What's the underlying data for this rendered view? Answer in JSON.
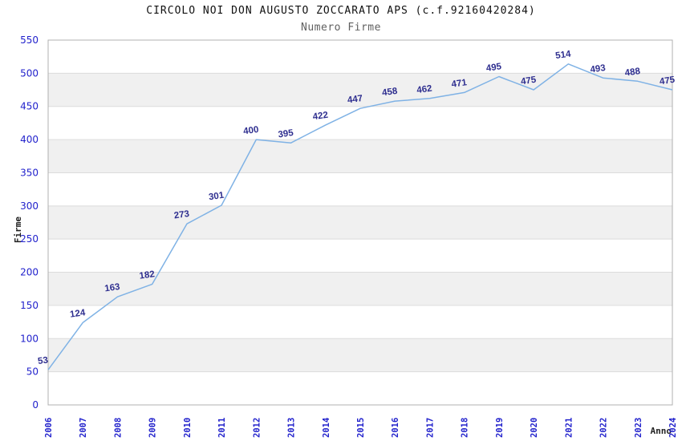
{
  "chart_data": {
    "type": "line",
    "title": "CIRCOLO NOI DON AUGUSTO ZOCCARATO APS (c.f.92160420284)",
    "subtitle": "Numero Firme",
    "xlabel": "Anno",
    "ylabel": "Firme",
    "categories": [
      "2006",
      "2007",
      "2008",
      "2009",
      "2010",
      "2011",
      "2012",
      "2013",
      "2014",
      "2015",
      "2016",
      "2017",
      "2018",
      "2019",
      "2020",
      "2021",
      "2022",
      "2023",
      "2024"
    ],
    "values": [
      53,
      124,
      163,
      182,
      273,
      301,
      400,
      395,
      422,
      447,
      458,
      462,
      471,
      495,
      475,
      514,
      493,
      488,
      475
    ],
    "ylim": [
      0,
      550
    ],
    "ytick_step": 50,
    "grid": true,
    "legend_position": "none",
    "colors": {
      "line": "#7fb2e5",
      "data_label": "#2e2e8f",
      "tick_label": "#2222cc",
      "axis_title": "#222222",
      "title": "#111111",
      "subtitle": "#606060",
      "band": "#f0f0f0",
      "gridline": "#dcdcdc",
      "border": "#b0b0b0",
      "background": "#ffffff"
    }
  }
}
